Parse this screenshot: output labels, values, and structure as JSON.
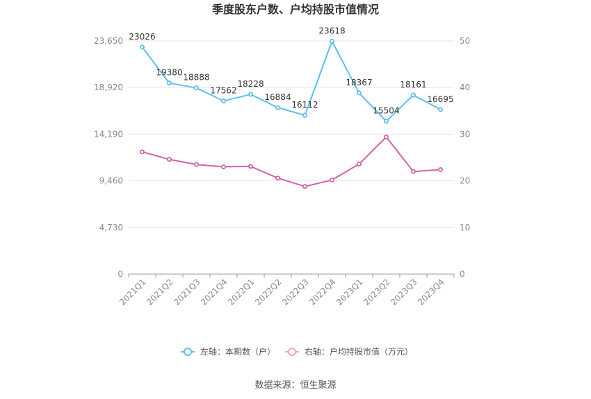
{
  "chart_data": {
    "type": "line",
    "title": "季度股东户数、户均持股市值情况",
    "categories": [
      "2021Q1",
      "2021Q2",
      "2021Q3",
      "2021Q4",
      "2022Q1",
      "2022Q2",
      "2022Q3",
      "2022Q4",
      "2023Q1",
      "2023Q2",
      "2023Q3",
      "2023Q4"
    ],
    "left_axis": {
      "ticks": [
        "0",
        "4,730",
        "9,460",
        "14,190",
        "18,920",
        "23,650"
      ],
      "min": 0,
      "max": 23650
    },
    "right_axis": {
      "ticks": [
        "0",
        "10",
        "20",
        "30",
        "40",
        "50"
      ],
      "min": 0,
      "max": 50
    },
    "series": [
      {
        "name": "左轴：本期数（户）",
        "axis": "left",
        "color": "#5bc0eb",
        "values": [
          23026,
          19380,
          18888,
          17562,
          18228,
          16884,
          16112,
          23618,
          18367,
          15504,
          18161,
          16695
        ],
        "labels": [
          "23026",
          "19380",
          "18888",
          "17562",
          "18228",
          "16884",
          "16112",
          "23618",
          "18367",
          "15504",
          "18161",
          "16695"
        ]
      },
      {
        "name": "右轴：户均持股市值（万元）",
        "axis": "right",
        "color": "#d462a6",
        "values": [
          26.2,
          24.6,
          23.5,
          23.0,
          23.1,
          20.6,
          18.8,
          20.2,
          23.6,
          29.4,
          22.0,
          22.4
        ]
      }
    ],
    "grid": true,
    "legend_position": "bottom"
  },
  "footer": {
    "source": "数据来源：恒生聚源"
  }
}
